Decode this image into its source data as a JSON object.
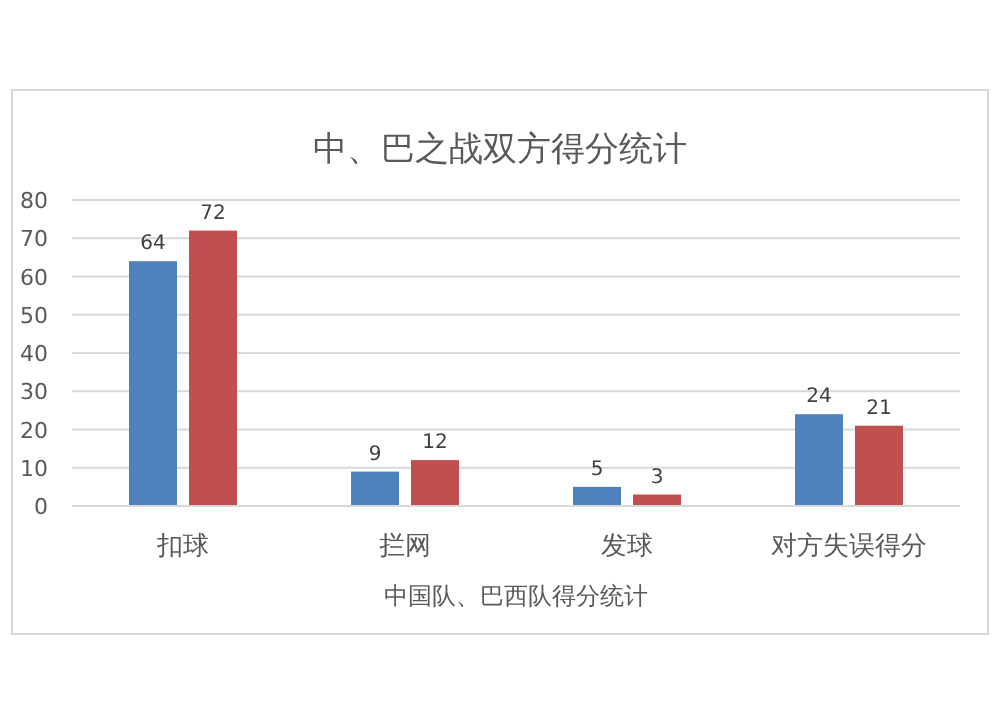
{
  "chart_data": {
    "type": "bar",
    "title": "中、巴之战双方得分统计",
    "xlabel": "中国队、巴西队得分统计",
    "categories": [
      "扣球",
      "拦网",
      "发球",
      "对方失误得分"
    ],
    "series": [
      {
        "color": "#4f81bd",
        "values": [
          64,
          9,
          5,
          24
        ]
      },
      {
        "color": "#c0504d",
        "values": [
          72,
          12,
          3,
          21
        ]
      }
    ],
    "ylim": [
      0,
      80
    ],
    "yticks": [
      0,
      10,
      20,
      30,
      40,
      50,
      60,
      70,
      80
    ],
    "grid": "y",
    "data_labels": true
  }
}
